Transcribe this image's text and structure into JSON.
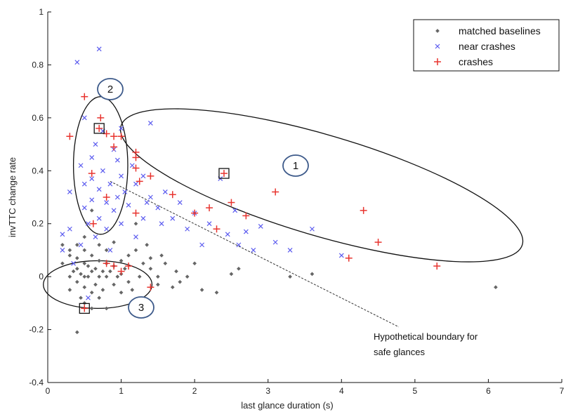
{
  "chart_data": {
    "type": "scatter",
    "xlabel": "last glance duration (s)",
    "ylabel": "invTTC change rate",
    "xlim": [
      0,
      7
    ],
    "ylim": [
      -0.4,
      1
    ],
    "xticks": [
      "0",
      "1",
      "2",
      "3",
      "4",
      "5",
      "6",
      "7"
    ],
    "yticks": [
      "-0.4",
      "-0.2",
      "0",
      "0.2",
      "0.4",
      "0.6",
      "0.8",
      "1"
    ],
    "legend": {
      "position": "top-right"
    },
    "grid": false,
    "series": [
      {
        "name": "matched baselines",
        "marker": "dot",
        "color": "#666666",
        "points": [
          [
            0.2,
            0.12
          ],
          [
            0.2,
            0.05
          ],
          [
            0.3,
            0.1
          ],
          [
            0.3,
            0.0
          ],
          [
            0.3,
            -0.05
          ],
          [
            0.3,
            0.08
          ],
          [
            0.35,
            0.02
          ],
          [
            0.4,
            0.03
          ],
          [
            0.4,
            -0.02
          ],
          [
            0.4,
            0.12
          ],
          [
            0.4,
            -0.21
          ],
          [
            0.4,
            0.07
          ],
          [
            0.45,
            -0.08
          ],
          [
            0.45,
            0.01
          ],
          [
            0.5,
            0.05
          ],
          [
            0.5,
            0.0
          ],
          [
            0.5,
            -0.1
          ],
          [
            0.5,
            0.1
          ],
          [
            0.5,
            0.15
          ],
          [
            0.5,
            -0.04
          ],
          [
            0.55,
            0.04
          ],
          [
            0.55,
            0.0
          ],
          [
            0.6,
            0.02
          ],
          [
            0.6,
            -0.06
          ],
          [
            0.6,
            0.08
          ],
          [
            0.6,
            0.25
          ],
          [
            0.6,
            -0.12
          ],
          [
            0.65,
            0.03
          ],
          [
            0.65,
            -0.03
          ],
          [
            0.7,
            0.06
          ],
          [
            0.7,
            0.0
          ],
          [
            0.7,
            -0.08
          ],
          [
            0.7,
            0.12
          ],
          [
            0.75,
            0.02
          ],
          [
            0.75,
            -0.05
          ],
          [
            0.8,
            0.05
          ],
          [
            0.8,
            0.0
          ],
          [
            0.8,
            -0.12
          ],
          [
            0.8,
            0.1
          ],
          [
            0.85,
            0.02
          ],
          [
            0.9,
            0.04
          ],
          [
            0.9,
            -0.03
          ],
          [
            0.9,
            0.13
          ],
          [
            0.95,
            0.0
          ],
          [
            1.0,
            0.06
          ],
          [
            1.0,
            -0.06
          ],
          [
            1.0,
            0.01
          ],
          [
            1.05,
            0.03
          ],
          [
            1.1,
            -0.02
          ],
          [
            1.1,
            0.08
          ],
          [
            1.15,
            -0.05
          ],
          [
            1.2,
            0.1
          ],
          [
            1.2,
            0.2
          ],
          [
            1.25,
            0.0
          ],
          [
            1.3,
            0.05
          ],
          [
            1.3,
            -0.1
          ],
          [
            1.35,
            0.12
          ],
          [
            1.4,
            0.03
          ],
          [
            1.4,
            0.07
          ],
          [
            1.5,
            0.0
          ],
          [
            1.5,
            -0.03
          ],
          [
            1.55,
            0.08
          ],
          [
            1.6,
            0.05
          ],
          [
            1.7,
            -0.04
          ],
          [
            1.75,
            0.02
          ],
          [
            1.8,
            -0.02
          ],
          [
            1.9,
            0.0
          ],
          [
            2.0,
            0.05
          ],
          [
            2.1,
            -0.05
          ],
          [
            2.3,
            -0.06
          ],
          [
            2.5,
            0.01
          ],
          [
            2.6,
            0.03
          ],
          [
            3.3,
            0.0
          ],
          [
            3.6,
            0.01
          ],
          [
            6.1,
            -0.04
          ]
        ]
      },
      {
        "name": "near crashes",
        "marker": "x",
        "color": "#5b5bef",
        "points": [
          [
            0.2,
            0.16
          ],
          [
            0.2,
            0.1
          ],
          [
            0.3,
            0.32
          ],
          [
            0.3,
            0.18
          ],
          [
            0.35,
            0.05
          ],
          [
            0.4,
            0.81
          ],
          [
            0.45,
            0.42
          ],
          [
            0.45,
            0.12
          ],
          [
            0.5,
            0.6
          ],
          [
            0.5,
            0.35
          ],
          [
            0.5,
            0.26
          ],
          [
            0.55,
            0.2
          ],
          [
            0.55,
            -0.08
          ],
          [
            0.6,
            0.45
          ],
          [
            0.6,
            0.37
          ],
          [
            0.6,
            0.29
          ],
          [
            0.65,
            0.15
          ],
          [
            0.65,
            0.5
          ],
          [
            0.7,
            0.86
          ],
          [
            0.7,
            0.33
          ],
          [
            0.7,
            0.22
          ],
          [
            0.75,
            0.55
          ],
          [
            0.75,
            0.4
          ],
          [
            0.8,
            0.28
          ],
          [
            0.8,
            0.18
          ],
          [
            0.85,
            0.35
          ],
          [
            0.85,
            0.1
          ],
          [
            0.9,
            0.48
          ],
          [
            0.9,
            0.25
          ],
          [
            0.95,
            0.44
          ],
          [
            0.95,
            0.3
          ],
          [
            1.0,
            0.56
          ],
          [
            1.0,
            0.38
          ],
          [
            1.0,
            0.2
          ],
          [
            1.05,
            0.32
          ],
          [
            1.1,
            0.27
          ],
          [
            1.15,
            0.42
          ],
          [
            1.2,
            0.35
          ],
          [
            1.2,
            0.15
          ],
          [
            1.3,
            0.38
          ],
          [
            1.3,
            0.22
          ],
          [
            1.35,
            0.28
          ],
          [
            1.4,
            0.58
          ],
          [
            1.4,
            0.3
          ],
          [
            1.5,
            0.26
          ],
          [
            1.55,
            0.2
          ],
          [
            1.6,
            0.32
          ],
          [
            1.7,
            0.22
          ],
          [
            1.8,
            0.28
          ],
          [
            1.9,
            0.18
          ],
          [
            2.0,
            0.24
          ],
          [
            2.1,
            0.12
          ],
          [
            2.2,
            0.2
          ],
          [
            2.35,
            0.37
          ],
          [
            2.45,
            0.16
          ],
          [
            2.55,
            0.25
          ],
          [
            2.6,
            0.12
          ],
          [
            2.7,
            0.17
          ],
          [
            2.8,
            0.1
          ],
          [
            2.9,
            0.19
          ],
          [
            3.1,
            0.13
          ],
          [
            3.3,
            0.1
          ],
          [
            3.6,
            0.18
          ],
          [
            4.0,
            0.08
          ]
        ]
      },
      {
        "name": "crashes",
        "marker": "plus",
        "color": "#e8342f",
        "points": [
          [
            0.3,
            0.53
          ],
          [
            0.5,
            0.68
          ],
          [
            0.6,
            0.39
          ],
          [
            0.62,
            0.2
          ],
          [
            0.7,
            0.56
          ],
          [
            0.72,
            0.6
          ],
          [
            0.8,
            0.54
          ],
          [
            0.9,
            0.49
          ],
          [
            0.9,
            0.53
          ],
          [
            1.0,
            0.53
          ],
          [
            0.8,
            0.3
          ],
          [
            1.2,
            0.47
          ],
          [
            1.2,
            0.45
          ],
          [
            1.2,
            0.41
          ],
          [
            1.25,
            0.36
          ],
          [
            1.4,
            0.38
          ],
          [
            1.7,
            0.31
          ],
          [
            2.0,
            0.24
          ],
          [
            2.2,
            0.26
          ],
          [
            2.4,
            0.39
          ],
          [
            2.5,
            0.28
          ],
          [
            2.7,
            0.23
          ],
          [
            2.3,
            0.18
          ],
          [
            3.1,
            0.32
          ],
          [
            4.1,
            0.07
          ],
          [
            4.3,
            0.25
          ],
          [
            4.5,
            0.13
          ],
          [
            5.3,
            0.04
          ],
          [
            1.0,
            0.02
          ],
          [
            1.1,
            0.04
          ],
          [
            1.4,
            -0.04
          ],
          [
            0.5,
            -0.12
          ],
          [
            0.8,
            0.05
          ],
          [
            1.2,
            0.24
          ],
          [
            0.9,
            0.04
          ]
        ]
      }
    ],
    "highlighted_points": [
      [
        0.7,
        0.56
      ],
      [
        2.4,
        0.39
      ],
      [
        0.5,
        -0.12
      ]
    ],
    "cluster_labels": [
      "1",
      "2",
      "3"
    ],
    "annotation_lines": [
      "Hypothetical boundary for",
      "safe glances"
    ]
  }
}
